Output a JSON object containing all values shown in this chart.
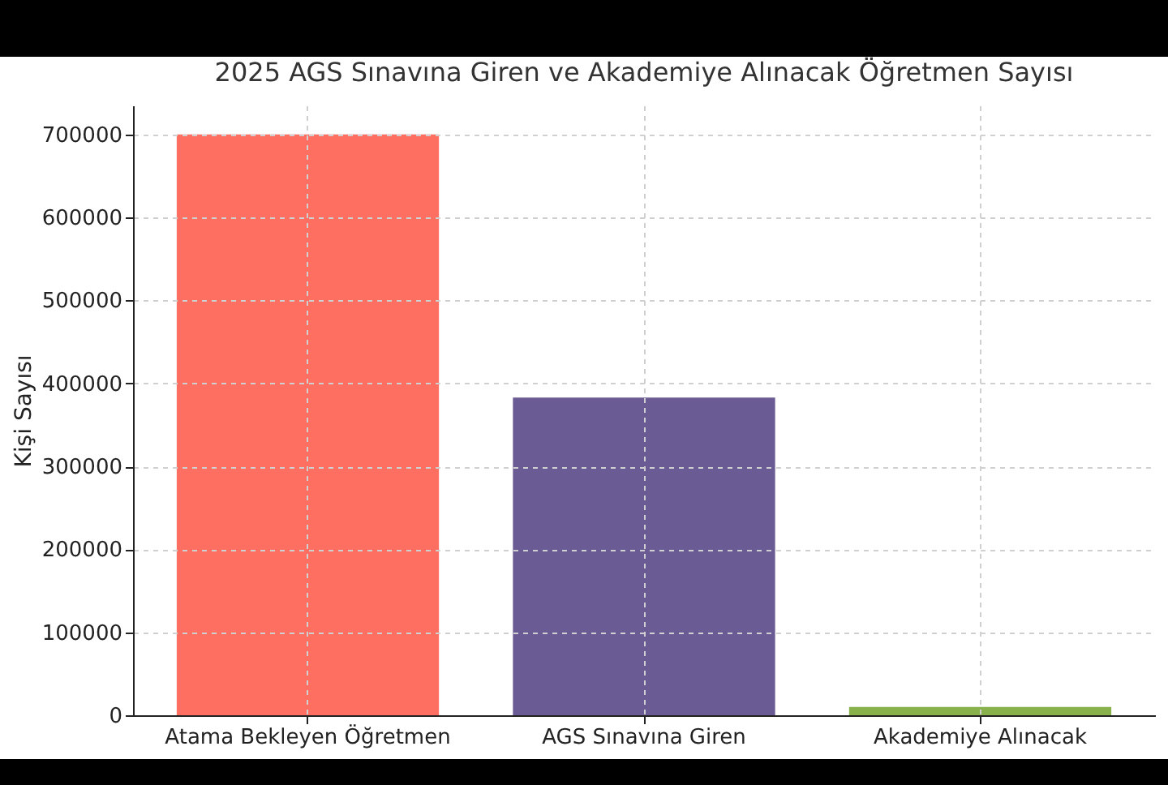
{
  "chart_data": {
    "type": "bar",
    "title": "2025 AGS Sınavına Giren ve Akademiye Alınacak Öğretmen Sayısı",
    "ylabel": "Kişi Sayısı",
    "categories": [
      "Atama Bekleyen Öğretmen",
      "AGS Sınavına Giren",
      "Akademiye Alınacak"
    ],
    "values": [
      700000,
      383000,
      10000
    ],
    "colors": [
      "#ff6f61",
      "#6b5b95",
      "#88b04b"
    ],
    "ylim": [
      0,
      735000
    ],
    "yticks": [
      0,
      100000,
      200000,
      300000,
      400000,
      500000,
      600000,
      700000
    ],
    "grid": true
  }
}
